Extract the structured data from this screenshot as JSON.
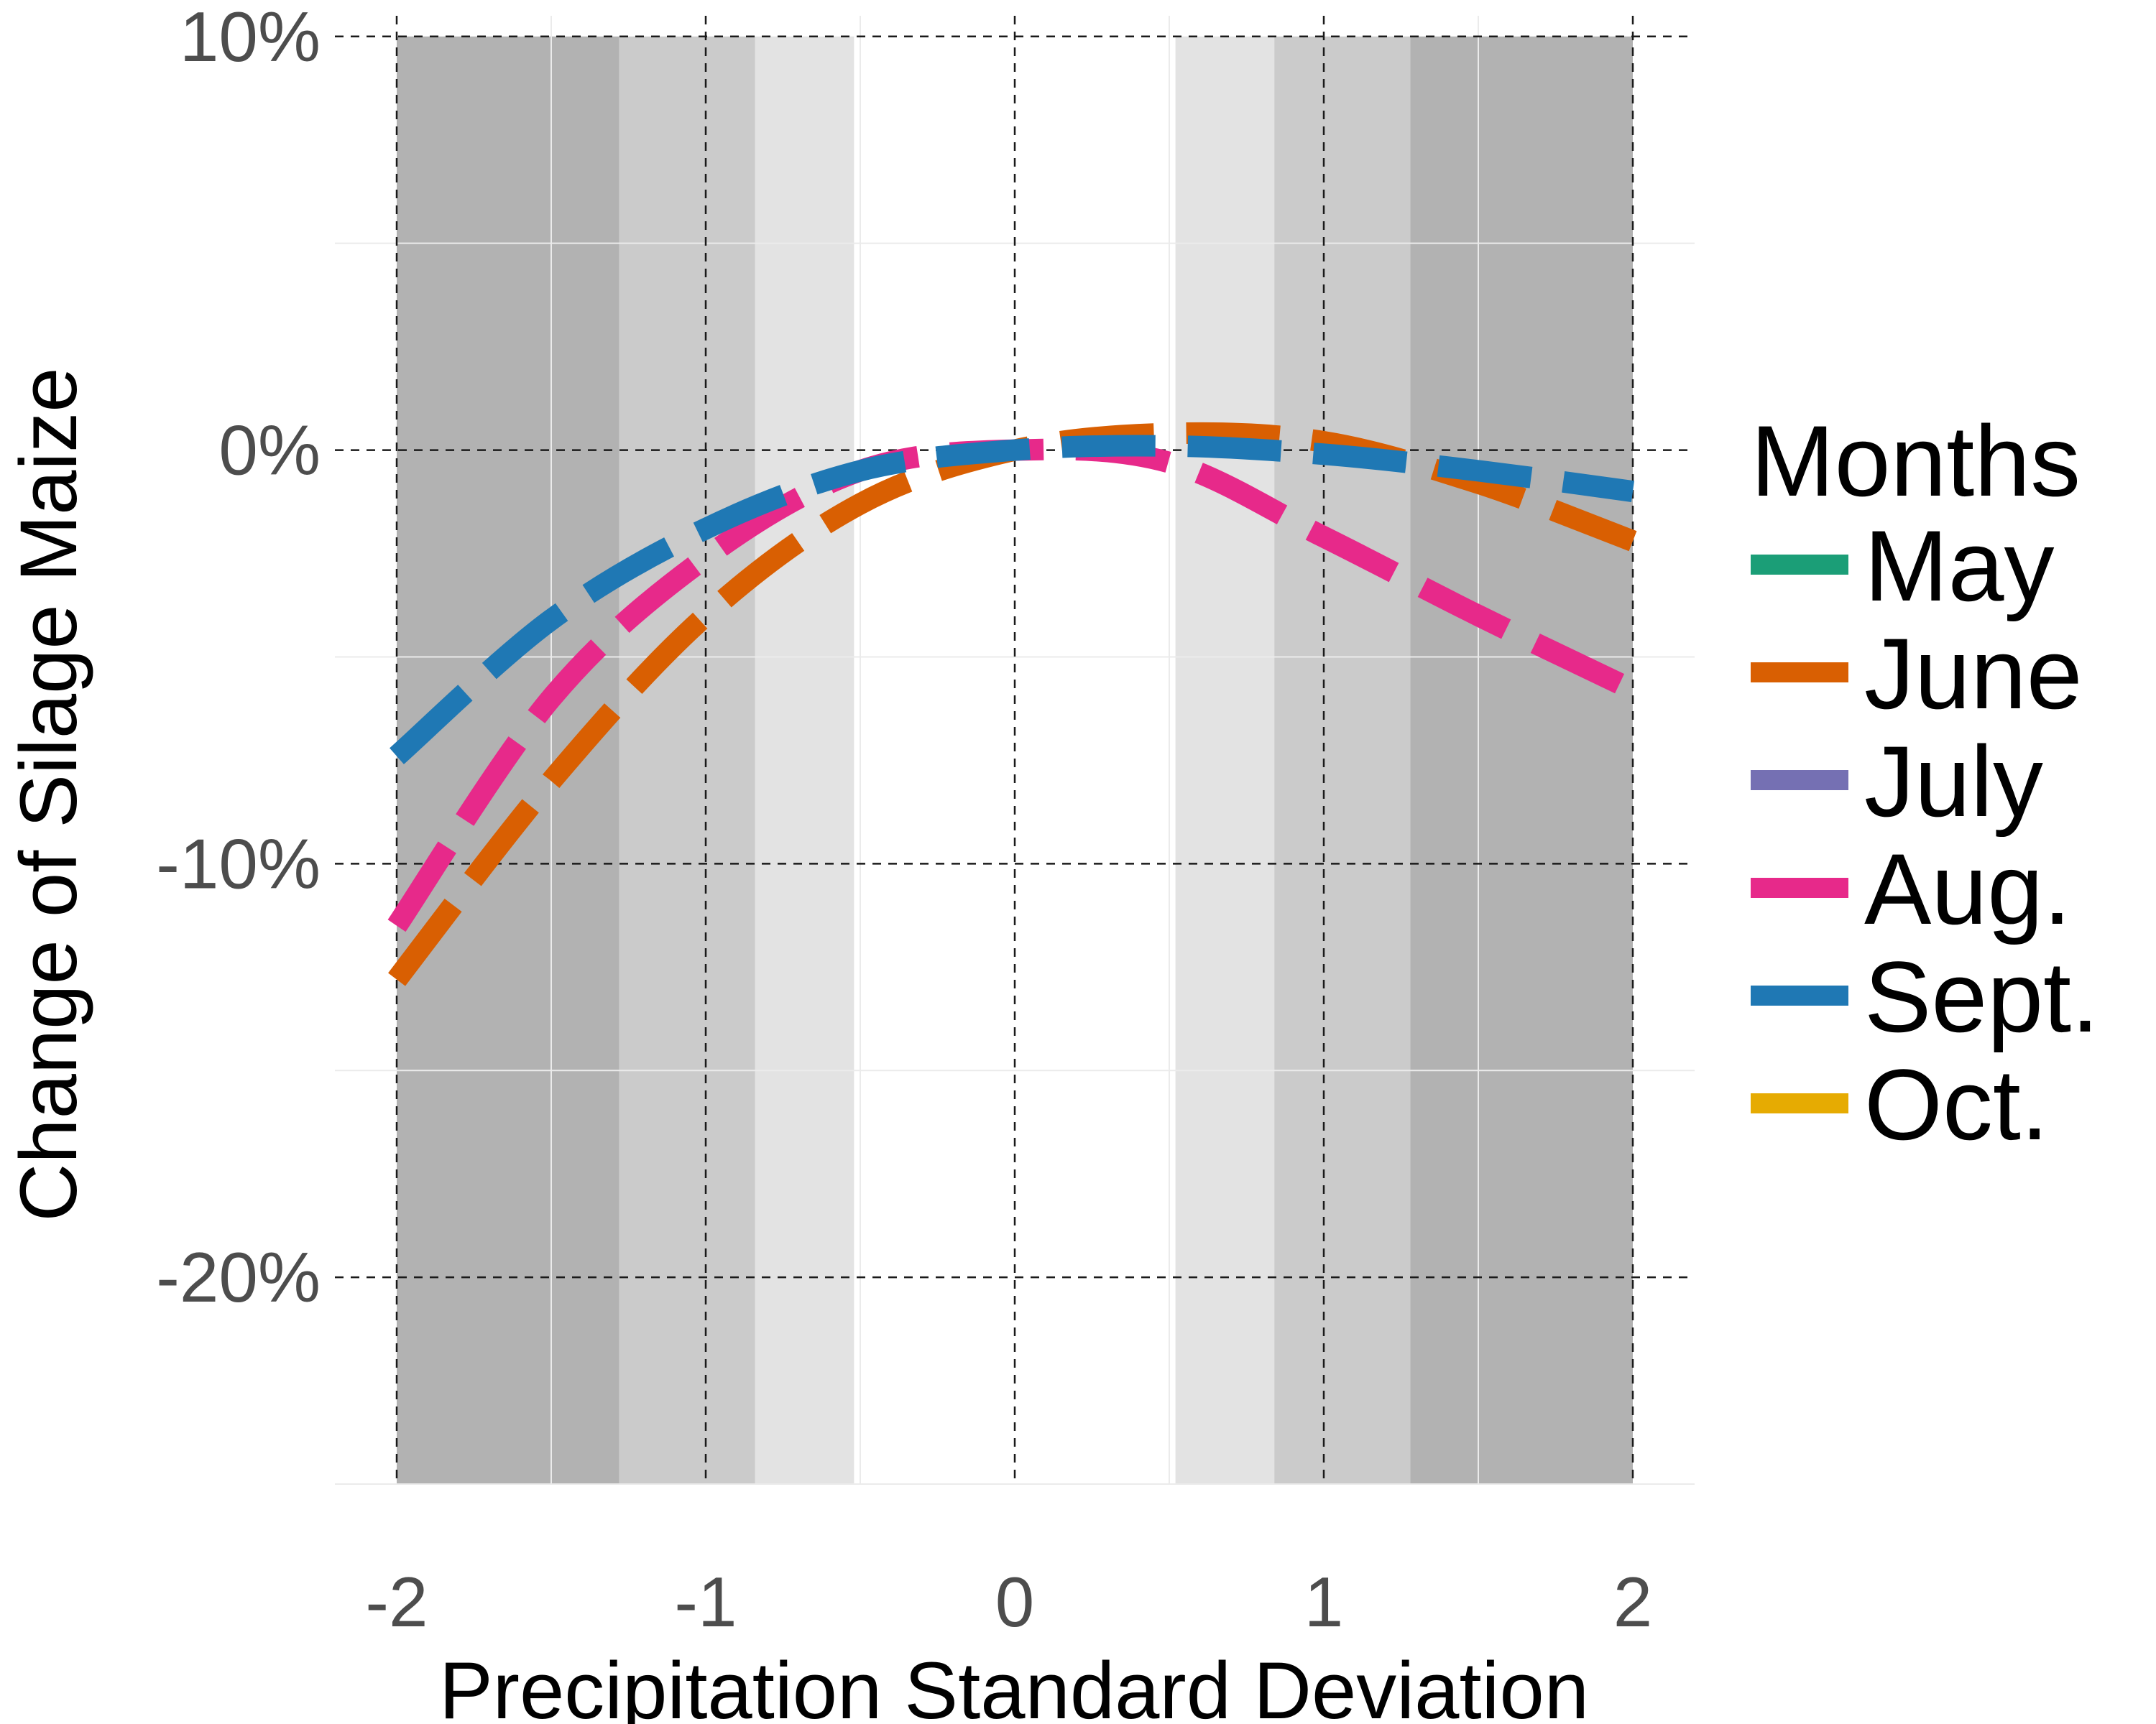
{
  "chart_data": {
    "type": "line",
    "xlabel": "Precipitation Standard Deviation",
    "ylabel": "Change of Silage Maize",
    "xlim": [
      -2.2,
      2.2
    ],
    "ylim": [
      -25,
      10.5
    ],
    "x_ticks": [
      -2,
      -1,
      0,
      1,
      2
    ],
    "x_tick_labels": [
      "-2",
      "-1",
      "0",
      "1",
      "2"
    ],
    "y_ticks": [
      10,
      0,
      -10,
      -20
    ],
    "y_tick_labels": [
      "10%",
      "0%",
      "-10%",
      "-20%"
    ],
    "grid": true,
    "shaded_bands": [
      {
        "x": [
          -2.0,
          -1.28
        ],
        "y": [
          -25,
          10
        ],
        "color": "#b2b2b2"
      },
      {
        "x": [
          -1.28,
          -0.84
        ],
        "y": [
          -25,
          10
        ],
        "color": "#cbcbcb"
      },
      {
        "x": [
          -0.84,
          -0.52
        ],
        "y": [
          -25,
          10
        ],
        "color": "#e3e3e3"
      },
      {
        "x": [
          0.52,
          0.84
        ],
        "y": [
          -25,
          10
        ],
        "color": "#e3e3e3"
      },
      {
        "x": [
          0.84,
          1.28
        ],
        "y": [
          -25,
          10
        ],
        "color": "#cbcbcb"
      },
      {
        "x": [
          1.28,
          2.0
        ],
        "y": [
          -25,
          10
        ],
        "color": "#b2b2b2"
      }
    ],
    "legend": {
      "title": "Months",
      "position": "right",
      "entries": [
        {
          "label": "May",
          "color": "#1b9e77"
        },
        {
          "label": "June",
          "color": "#d95f02"
        },
        {
          "label": "July",
          "color": "#7570b3"
        },
        {
          "label": "Aug.",
          "color": "#e7298a"
        },
        {
          "label": "Sept.",
          "color": "#1f78b4"
        },
        {
          "label": "Oct.",
          "color": "#e6ab02"
        }
      ]
    },
    "series": [
      {
        "name": "June",
        "color": "#d95f02",
        "x": [
          -2,
          -1.5,
          -1,
          -0.5,
          0,
          0.5,
          1,
          1.5,
          2
        ],
        "y": [
          -12.8,
          -8.0,
          -4.0,
          -1.3,
          0.0,
          0.4,
          0.2,
          -0.8,
          -2.2
        ]
      },
      {
        "name": "Aug.",
        "color": "#e7298a",
        "x": [
          -2,
          -1.5,
          -1,
          -0.5,
          0,
          0.5,
          1,
          1.5,
          2
        ],
        "y": [
          -11.5,
          -6.0,
          -2.6,
          -0.5,
          0.0,
          -0.3,
          -2.1,
          -4.0,
          -5.8
        ]
      },
      {
        "name": "Sept.",
        "color": "#1f78b4",
        "x": [
          -2,
          -1.5,
          -1,
          -0.5,
          0,
          0.5,
          1,
          1.5,
          2
        ],
        "y": [
          -7.4,
          -4.1,
          -1.9,
          -0.5,
          0.0,
          0.1,
          -0.1,
          -0.5,
          -1.0
        ]
      }
    ]
  }
}
